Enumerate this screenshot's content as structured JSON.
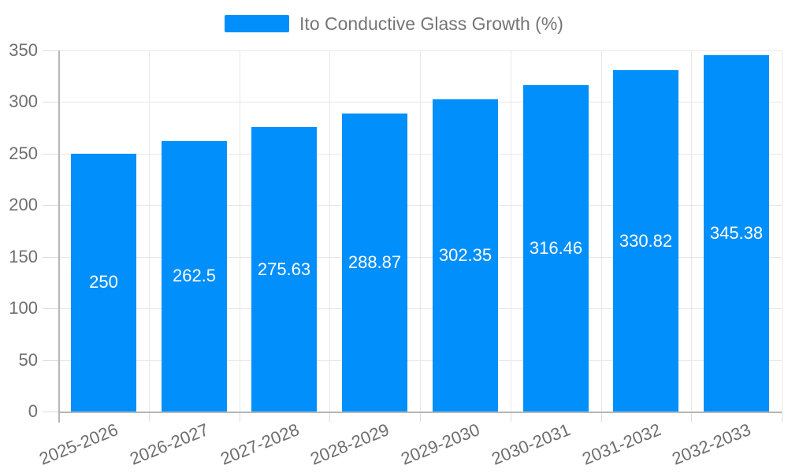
{
  "chart_data": {
    "type": "bar",
    "title": "Ito Conductive Glass Growth (%)",
    "legend": {
      "position": "top",
      "label": "Ito Conductive Glass Growth (%)"
    },
    "categories": [
      "2025-2026",
      "2026-2027",
      "2027-2028",
      "2028-2029",
      "2029-2030",
      "2030-2031",
      "2031-2032",
      "2032-2033"
    ],
    "values": [
      250,
      262.5,
      275.63,
      288.87,
      302.35,
      316.46,
      330.82,
      345.38
    ],
    "value_labels": [
      "250",
      "262.5",
      "275.63",
      "288.87",
      "302.35",
      "316.46",
      "330.82",
      "345.38"
    ],
    "xlabel": "",
    "ylabel": "",
    "ylim": [
      0,
      350
    ],
    "yticks": [
      0,
      50,
      100,
      150,
      200,
      250,
      300,
      350
    ],
    "ytick_labels": [
      "0",
      "50",
      "100",
      "150",
      "200",
      "250",
      "300",
      "350"
    ],
    "grid": true,
    "colors": {
      "bar": "#008FFB",
      "grid_line": "#e7e7e7",
      "axis_line": "#b6b6b6",
      "tick": "#dcdcdc",
      "axis_text": "#6e6e6e",
      "legend_text": "#757575",
      "value_text": "#ffffff",
      "background": "#ffffff"
    }
  }
}
